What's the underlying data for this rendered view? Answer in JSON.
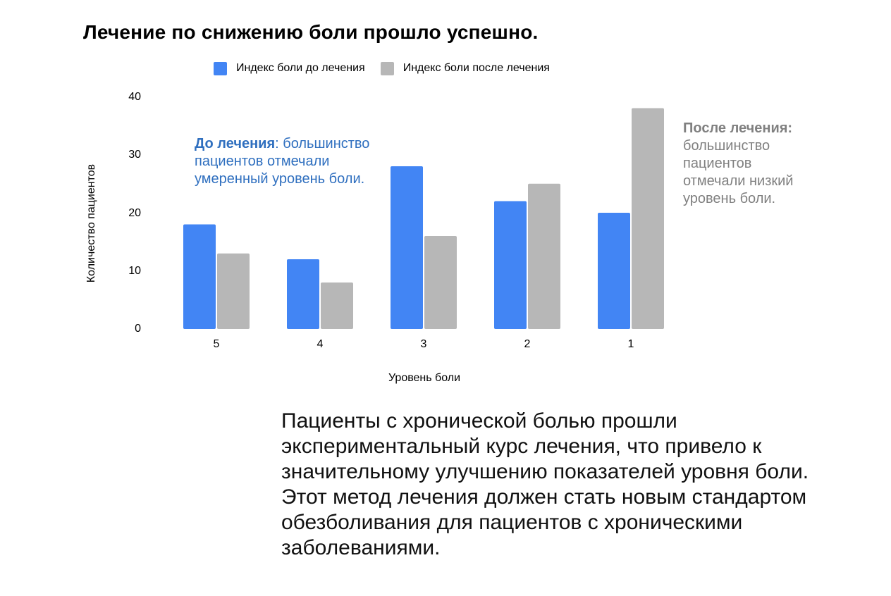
{
  "title": "Лечение по снижению боли прошло успешно.",
  "legend": [
    {
      "label": "Индекс боли до лечения",
      "color": "#4285f4"
    },
    {
      "label": "Индекс боли после лечения",
      "color": "#b7b7b7"
    }
  ],
  "annotations": {
    "before_bold": "До лечения",
    "before_colon": ":",
    "before_text": " большинство пациентов отмечали умеренный уровень боли.",
    "after_bold": "После лечения:",
    "after_text": "большинство пациентов отмечали низкий уровень боли."
  },
  "description": "Пациенты с хронической болью прошли экспериментальный курс лечения, что привело к значительному улучшению показателей уровня боли. Этот метод лечения должен стать новым стандартом обезболивания для пациентов с хроническими заболеваниями.",
  "chart_data": {
    "type": "bar",
    "title": "Лечение по снижению боли прошло успешно.",
    "xlabel": "Уровень боли",
    "ylabel": "Количество пациентов",
    "categories": [
      "5",
      "4",
      "3",
      "2",
      "1"
    ],
    "series": [
      {
        "name": "Индекс боли до лечения",
        "color": "#4285f4",
        "values": [
          18,
          12,
          28,
          22,
          20
        ]
      },
      {
        "name": "Индекс боли после лечения",
        "color": "#b7b7b7",
        "values": [
          13,
          8,
          16,
          25,
          38
        ]
      }
    ],
    "yticks": [
      "0",
      "10",
      "20",
      "30",
      "40"
    ],
    "ylim": [
      0,
      40
    ],
    "grid": false,
    "legend_position": "top"
  }
}
